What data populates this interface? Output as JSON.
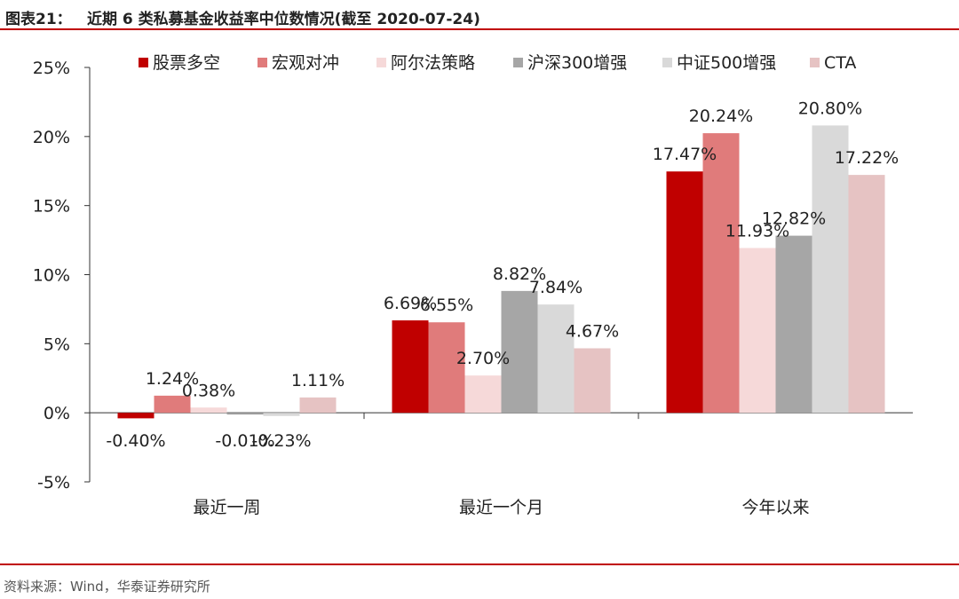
{
  "header": {
    "figure_label": "图表21：",
    "title": "近期 6 类私募基金收益率中位数情况(截至 2020-07-24)"
  },
  "footer": {
    "source": "资料来源：Wind，华泰证券研究所"
  },
  "colors": {
    "rule": "#c00000",
    "series": [
      "#c00000",
      "#e07b7b",
      "#f6d9d9",
      "#a6a6a6",
      "#d9d9d9",
      "#e6c3c3"
    ]
  },
  "chart_data": {
    "type": "bar",
    "categories": [
      "最近一周",
      "最近一个月",
      "今年以来"
    ],
    "series": [
      {
        "name": "股票多空",
        "values": [
          -0.4,
          6.69,
          17.47
        ],
        "labels": [
          "-0.40%",
          "6.69%",
          "17.47%"
        ]
      },
      {
        "name": "宏观对冲",
        "values": [
          1.24,
          6.55,
          20.24
        ],
        "labels": [
          "1.24%",
          "6.55%",
          "20.24%"
        ]
      },
      {
        "name": "阿尔法策略",
        "values": [
          0.38,
          2.7,
          11.93
        ],
        "labels": [
          "0.38%",
          "2.70%",
          "11.93%"
        ]
      },
      {
        "name": "沪深300增强",
        "values": [
          -0.01,
          8.82,
          12.82
        ],
        "labels": [
          "-0.01%",
          "8.82%",
          "12.82%"
        ]
      },
      {
        "name": "中证500增强",
        "values": [
          -0.23,
          7.84,
          20.8
        ],
        "labels": [
          "-0.23%",
          "7.84%",
          "20.80%"
        ]
      },
      {
        "name": "CTA",
        "values": [
          1.11,
          4.67,
          17.22
        ],
        "labels": [
          "1.11%",
          "4.67%",
          "17.22%"
        ]
      }
    ],
    "ylim": [
      -5,
      25
    ],
    "yticks": [
      -5,
      0,
      5,
      10,
      15,
      20,
      25
    ],
    "ytick_labels": [
      "-5%",
      "0%",
      "5%",
      "10%",
      "15%",
      "20%",
      "25%"
    ],
    "legend_position": "top",
    "grid": false,
    "title": "",
    "xlabel": "",
    "ylabel": ""
  }
}
